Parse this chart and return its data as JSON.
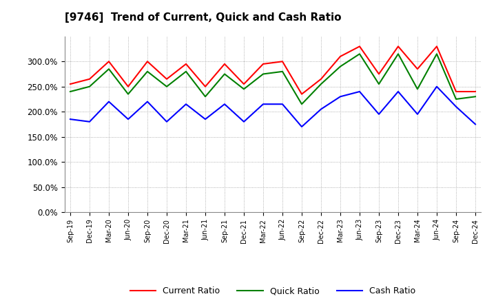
{
  "title": "[9746]  Trend of Current, Quick and Cash Ratio",
  "x_labels": [
    "Sep-19",
    "Dec-19",
    "Mar-20",
    "Jun-20",
    "Sep-20",
    "Dec-20",
    "Mar-21",
    "Jun-21",
    "Sep-21",
    "Dec-21",
    "Mar-22",
    "Jun-22",
    "Sep-22",
    "Dec-22",
    "Mar-23",
    "Jun-23",
    "Sep-23",
    "Dec-23",
    "Mar-24",
    "Jun-24",
    "Sep-24",
    "Dec-24"
  ],
  "current_ratio": [
    255,
    265,
    300,
    250,
    300,
    265,
    295,
    250,
    295,
    255,
    295,
    300,
    235,
    265,
    310,
    330,
    275,
    330,
    285,
    330,
    240,
    240
  ],
  "quick_ratio": [
    240,
    250,
    285,
    235,
    280,
    250,
    280,
    230,
    275,
    245,
    275,
    280,
    215,
    255,
    290,
    315,
    255,
    315,
    245,
    315,
    225,
    230
  ],
  "cash_ratio": [
    185,
    180,
    220,
    185,
    220,
    180,
    215,
    185,
    215,
    180,
    215,
    215,
    170,
    205,
    230,
    240,
    195,
    240,
    195,
    250,
    210,
    175
  ],
  "current_color": "#FF0000",
  "quick_color": "#008000",
  "cash_color": "#0000FF",
  "ylim": [
    0,
    350
  ],
  "yticks": [
    0,
    50,
    100,
    150,
    200,
    250,
    300
  ],
  "background_color": "#FFFFFF",
  "grid_color": "#AAAAAA"
}
